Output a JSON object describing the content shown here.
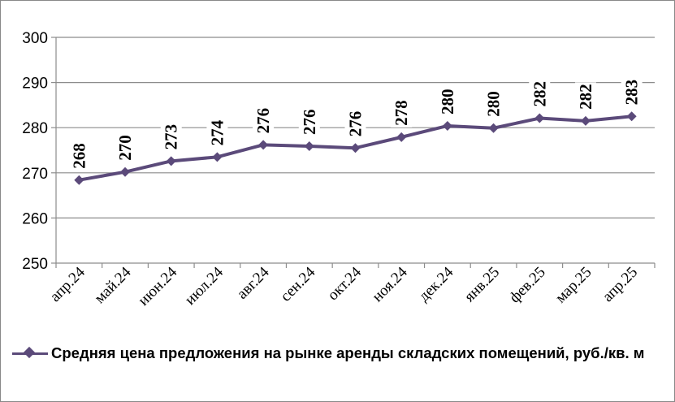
{
  "chart_data": {
    "type": "line",
    "categories": [
      "апр.24",
      "май.24",
      "июн.24",
      "июл.24",
      "авг.24",
      "сен.24",
      "окт.24",
      "ноя.24",
      "дек.24",
      "янв.25",
      "фев.25",
      "мар.25",
      "апр.25"
    ],
    "series": [
      {
        "name": "Средняя цена предложения на рынке аренды складских помещений, руб./кв. м",
        "values": [
          268.4,
          270.2,
          272.6,
          273.5,
          276.2,
          275.9,
          275.5,
          277.9,
          280.4,
          279.9,
          282.1,
          281.5,
          282.5
        ],
        "labels": [
          "268",
          "270",
          "273",
          "274",
          "276",
          "276",
          "276",
          "278",
          "280",
          "280",
          "282",
          "282",
          "283"
        ],
        "color": "#5b4a7a"
      }
    ],
    "ylim": [
      250,
      300
    ],
    "yticks": [
      "250",
      "260",
      "270",
      "280",
      "290",
      "300"
    ],
    "grid": true,
    "legend": "bottom",
    "title": "",
    "xlabel": "",
    "ylabel": ""
  }
}
